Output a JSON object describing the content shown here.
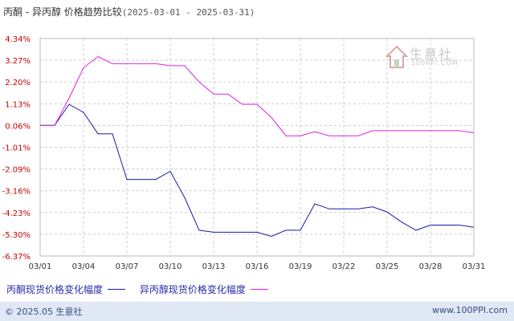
{
  "title": {
    "main": "丙酮 - 异丙醇 价格趋势比较",
    "range": "(2025-03-01 - 2025-03-31)"
  },
  "watermark": {
    "text": "生意社",
    "sub": "100PPI.COM"
  },
  "footer": {
    "copyright": "© 2025.05 生意社",
    "url": "www.100PPI.com",
    "background": "#dfe8f4"
  },
  "chart_data": {
    "type": "line",
    "title": "丙酮 - 异丙醇 价格趋势比较(2025-03-01 - 2025-03-31)",
    "x": [
      "03/01",
      "03/02",
      "03/03",
      "03/04",
      "03/05",
      "03/06",
      "03/07",
      "03/08",
      "03/09",
      "03/10",
      "03/11",
      "03/12",
      "03/13",
      "03/14",
      "03/15",
      "03/16",
      "03/17",
      "03/18",
      "03/19",
      "03/20",
      "03/21",
      "03/22",
      "03/23",
      "03/24",
      "03/25",
      "03/26",
      "03/27",
      "03/28",
      "03/29",
      "03/30",
      "03/31"
    ],
    "xticks": [
      "03/01",
      "03/04",
      "03/07",
      "03/10",
      "03/13",
      "03/16",
      "03/19",
      "03/22",
      "03/25",
      "03/28",
      "03/31"
    ],
    "yticks": [
      "4.34%",
      "3.27%",
      "2.20%",
      "1.13%",
      "0.06%",
      "-1.01%",
      "-2.09%",
      "-3.16%",
      "-4.23%",
      "-5.30%",
      "-6.37%"
    ],
    "ylim": [
      -6.37,
      4.34
    ],
    "unit": "%",
    "grid": true,
    "legend_position": "bottom",
    "series": [
      {
        "name": "丙酮现货价格变化幅度",
        "color": "#1a1aa8",
        "values": [
          0.06,
          0.06,
          1.1,
          0.7,
          -0.35,
          -0.35,
          -2.6,
          -2.6,
          -2.6,
          -2.2,
          -3.5,
          -5.1,
          -5.2,
          -5.2,
          -5.2,
          -5.2,
          -5.4,
          -5.1,
          -5.1,
          -3.8,
          -4.05,
          -4.05,
          -4.05,
          -3.95,
          -4.2,
          -4.7,
          -5.1,
          -4.85,
          -4.85,
          -4.85,
          -4.95
        ]
      },
      {
        "name": "异丙醇现货价格变化幅度",
        "color": "#e020e0",
        "values": [
          0.06,
          0.06,
          1.4,
          2.9,
          3.45,
          3.1,
          3.1,
          3.1,
          3.1,
          3.0,
          3.0,
          2.2,
          1.6,
          1.6,
          1.1,
          1.1,
          0.45,
          -0.45,
          -0.45,
          -0.25,
          -0.45,
          -0.45,
          -0.45,
          -0.2,
          -0.2,
          -0.2,
          -0.2,
          -0.2,
          -0.2,
          -0.2,
          -0.3
        ]
      }
    ]
  }
}
